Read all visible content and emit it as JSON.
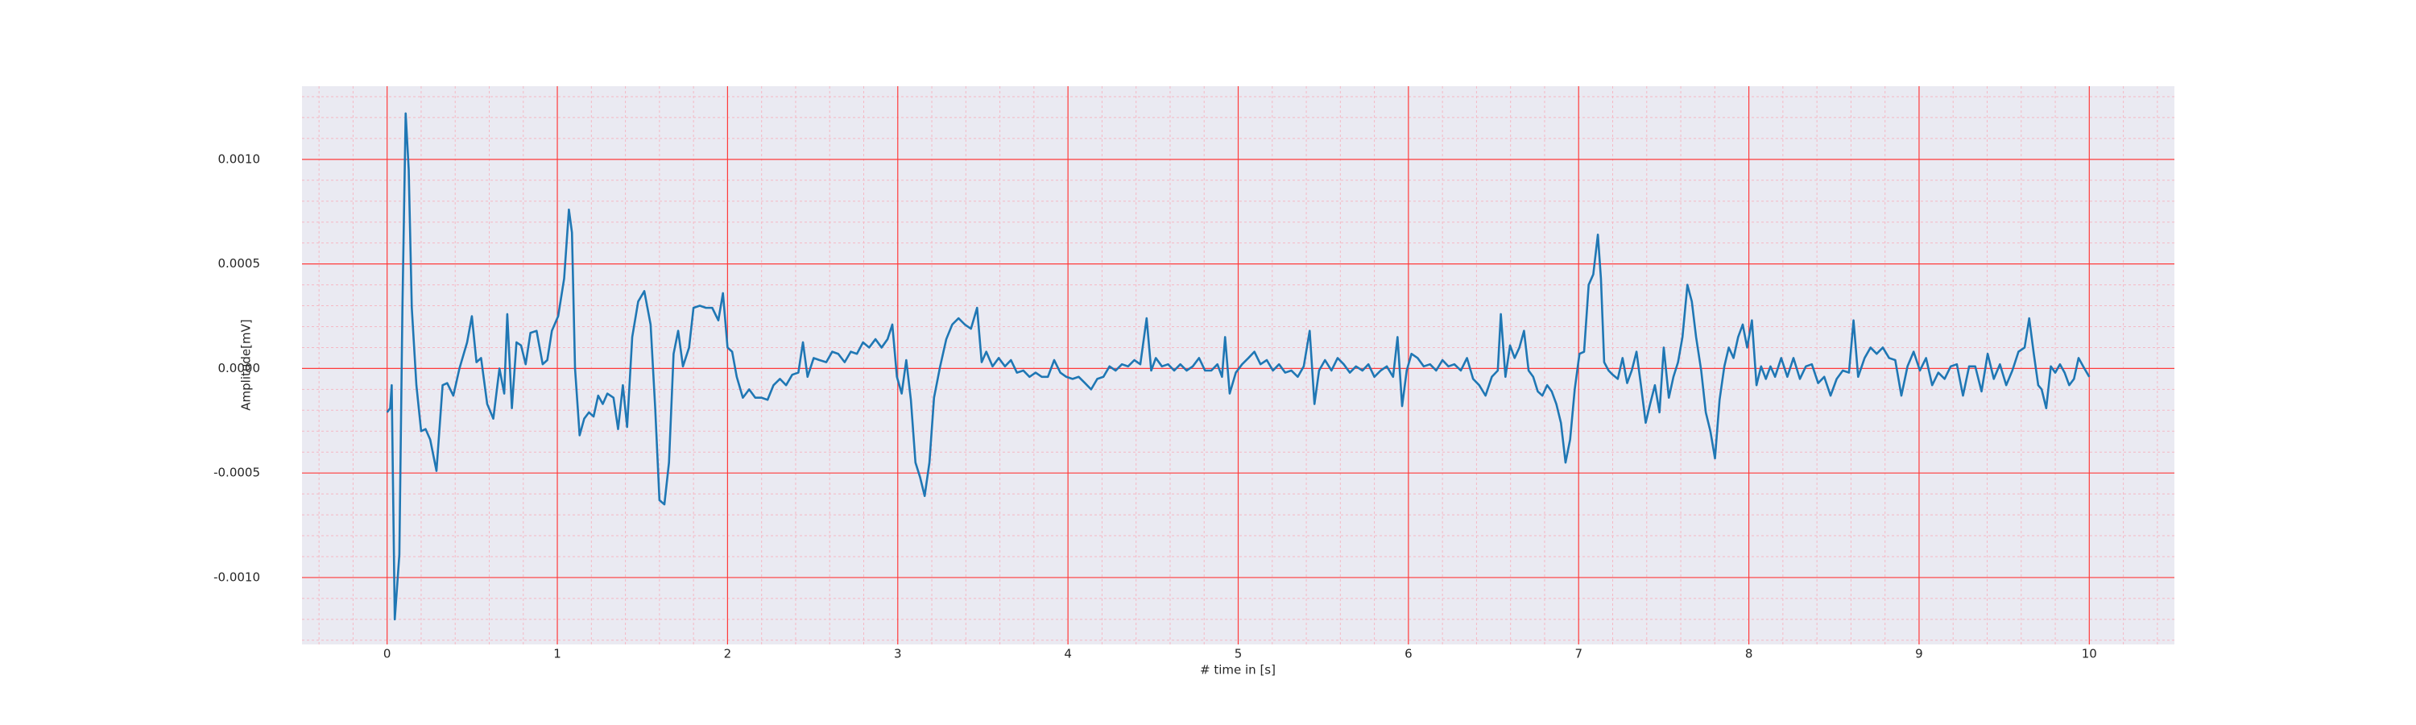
{
  "chart_data": {
    "type": "line",
    "xlabel": "# time in [s]",
    "ylabel": "Amplitude[mV]",
    "x": [
      0,
      0.018,
      0.027,
      0.045,
      0.072,
      0.09,
      0.109,
      0.127,
      0.145,
      0.172,
      0.2,
      0.226,
      0.253,
      0.29,
      0.326,
      0.353,
      0.389,
      0.425,
      0.47,
      0.498,
      0.525,
      0.552,
      0.588,
      0.624,
      0.66,
      0.688,
      0.706,
      0.733,
      0.76,
      0.787,
      0.814,
      0.842,
      0.878,
      0.914,
      0.941,
      0.968,
      1.005,
      1.04,
      1.068,
      1.086,
      1.104,
      1.131,
      1.158,
      1.186,
      1.213,
      1.24,
      1.267,
      1.294,
      1.33,
      1.357,
      1.385,
      1.41,
      1.44,
      1.475,
      1.511,
      1.548,
      1.575,
      1.6,
      1.629,
      1.656,
      1.683,
      1.71,
      1.738,
      1.774,
      1.8,
      1.837,
      1.873,
      1.91,
      1.946,
      1.973,
      2.0,
      2.027,
      2.054,
      2.09,
      2.127,
      2.163,
      2.2,
      2.235,
      2.27,
      2.308,
      2.344,
      2.38,
      2.416,
      2.443,
      2.47,
      2.506,
      2.54,
      2.58,
      2.615,
      2.65,
      2.688,
      2.724,
      2.76,
      2.796,
      2.832,
      2.869,
      2.905,
      2.94,
      2.968,
      2.995,
      3.023,
      3.05,
      3.077,
      3.104,
      3.131,
      3.158,
      3.186,
      3.213,
      3.249,
      3.285,
      3.32,
      3.357,
      3.394,
      3.43,
      3.466,
      3.493,
      3.52,
      3.557,
      3.593,
      3.63,
      3.665,
      3.7,
      3.738,
      3.774,
      3.81,
      3.846,
      3.882,
      3.919,
      3.955,
      3.99,
      4.027,
      4.063,
      4.1,
      4.136,
      4.172,
      4.208,
      4.244,
      4.28,
      4.317,
      4.353,
      4.39,
      4.425,
      4.462,
      4.489,
      4.516,
      4.552,
      4.588,
      4.624,
      4.66,
      4.697,
      4.733,
      4.77,
      4.805,
      4.842,
      4.878,
      4.905,
      4.923,
      4.95,
      4.986,
      5.023,
      5.06,
      5.095,
      5.131,
      5.168,
      5.204,
      5.24,
      5.276,
      5.312,
      5.35,
      5.385,
      5.42,
      5.448,
      5.475,
      5.51,
      5.548,
      5.584,
      5.62,
      5.656,
      5.692,
      5.73,
      5.765,
      5.8,
      5.837,
      5.873,
      5.91,
      5.936,
      5.963,
      5.99,
      6.018,
      6.054,
      6.09,
      6.127,
      6.163,
      6.2,
      6.235,
      6.27,
      6.308,
      6.344,
      6.38,
      6.416,
      6.453,
      6.49,
      6.525,
      6.543,
      6.57,
      6.597,
      6.624,
      6.652,
      6.679,
      6.706,
      6.733,
      6.76,
      6.787,
      6.815,
      6.842,
      6.869,
      6.896,
      6.923,
      6.95,
      6.977,
      7.005,
      7.032,
      7.059,
      7.086,
      7.113,
      7.131,
      7.15,
      7.176,
      7.2,
      7.23,
      7.258,
      7.285,
      7.312,
      7.34,
      7.366,
      7.394,
      7.42,
      7.448,
      7.475,
      7.5,
      7.53,
      7.557,
      7.584,
      7.61,
      7.639,
      7.665,
      7.69,
      7.72,
      7.747,
      7.774,
      7.801,
      7.828,
      7.856,
      7.882,
      7.91,
      7.937,
      7.964,
      7.99,
      8.018,
      8.045,
      8.072,
      8.1,
      8.127,
      8.154,
      8.19,
      8.226,
      8.262,
      8.3,
      8.335,
      8.37,
      8.407,
      8.443,
      8.48,
      8.516,
      8.552,
      8.588,
      8.615,
      8.642,
      8.68,
      8.715,
      8.751,
      8.787,
      8.824,
      8.86,
      8.896,
      8.932,
      8.968,
      9.005,
      9.041,
      9.077,
      9.113,
      9.15,
      9.186,
      9.222,
      9.258,
      9.294,
      9.33,
      9.367,
      9.403,
      9.439,
      9.475,
      9.512,
      9.548,
      9.584,
      9.62,
      9.647,
      9.674,
      9.7,
      9.72,
      9.747,
      9.774,
      9.8,
      9.828,
      9.855,
      9.882,
      9.91,
      9.937,
      9.964,
      10.0
    ],
    "series": [
      {
        "color": "#1f77b4",
        "values": [
          -0.00021,
          -0.00019,
          -8e-05,
          -0.0012,
          -0.00089,
          0.00029,
          0.00122,
          0.00095,
          0.00029,
          -8e-05,
          -0.0003,
          -0.00029,
          -0.00034,
          -0.00049,
          -8e-05,
          -7e-05,
          -0.00013,
          0,
          0.000125,
          0.00025,
          3e-05,
          5e-05,
          -0.00017,
          -0.00024,
          0,
          -0.00012,
          0.00026,
          -0.00019,
          0.000125,
          0.00011,
          2e-05,
          0.00017,
          0.00018,
          2e-05,
          4e-05,
          0.00018,
          0.00025,
          0.00043,
          0.00076,
          0.00065,
          0,
          -0.00032,
          -0.00024,
          -0.00021,
          -0.00023,
          -0.00013,
          -0.00017,
          -0.00012,
          -0.00014,
          -0.00029,
          -8e-05,
          -0.00028,
          0.00015,
          0.00032,
          0.00037,
          0.00021,
          -0.00019,
          -0.00063,
          -0.00065,
          -0.00045,
          7e-05,
          0.00018,
          1e-05,
          0.0001,
          0.00029,
          0.0003,
          0.00029,
          0.00029,
          0.00023,
          0.00036,
          0.0001,
          8e-05,
          -4e-05,
          -0.00014,
          -0.0001,
          -0.00014,
          -0.00014,
          -0.00015,
          -8e-05,
          -5e-05,
          -8e-05,
          -3e-05,
          -2e-05,
          0.000125,
          -4e-05,
          5e-05,
          4e-05,
          3e-05,
          8e-05,
          7e-05,
          3e-05,
          8e-05,
          7e-05,
          0.000125,
          0.0001,
          0.00014,
          0.0001,
          0.00014,
          0.00021,
          -4e-05,
          -0.00012,
          4e-05,
          -0.00015,
          -0.00045,
          -0.00052,
          -0.00061,
          -0.00045,
          -0.00014,
          1e-05,
          0.00014,
          0.00021,
          0.00024,
          0.00021,
          0.00019,
          0.00029,
          3e-05,
          8e-05,
          1e-05,
          5e-05,
          1e-05,
          4e-05,
          -2e-05,
          -1e-05,
          -4e-05,
          -2e-05,
          -4e-05,
          -4e-05,
          4e-05,
          -2e-05,
          -4e-05,
          -5e-05,
          -4e-05,
          -7e-05,
          -0.0001,
          -5e-05,
          -4e-05,
          1e-05,
          -1e-05,
          2e-05,
          1e-05,
          4e-05,
          2e-05,
          0.00024,
          -1e-05,
          5e-05,
          1e-05,
          2e-05,
          -1e-05,
          2e-05,
          -1e-05,
          1e-05,
          5e-05,
          -1e-05,
          -1e-05,
          2e-05,
          -4e-05,
          0.00015,
          -0.00012,
          -2e-05,
          2e-05,
          5e-05,
          8e-05,
          2e-05,
          4e-05,
          -1e-05,
          2e-05,
          -2e-05,
          -1e-05,
          -4e-05,
          1e-05,
          0.00018,
          -0.00017,
          -1e-05,
          4e-05,
          -1e-05,
          5e-05,
          2e-05,
          -2e-05,
          1e-05,
          -1e-05,
          2e-05,
          -4e-05,
          -1e-05,
          1e-05,
          -4e-05,
          0.00015,
          -0.00018,
          -1e-05,
          7e-05,
          5e-05,
          1e-05,
          2e-05,
          -1e-05,
          4e-05,
          1e-05,
          2e-05,
          -1e-05,
          5e-05,
          -5e-05,
          -8e-05,
          -0.00013,
          -4e-05,
          -1e-05,
          0.00026,
          -4e-05,
          0.00011,
          5e-05,
          0.0001,
          0.00018,
          -1e-05,
          -4e-05,
          -0.00011,
          -0.00013,
          -8e-05,
          -0.00011,
          -0.00017,
          -0.00026,
          -0.00045,
          -0.00034,
          -0.0001,
          7e-05,
          8e-05,
          0.0004,
          0.00045,
          0.00064,
          0.00043,
          3e-05,
          -1e-05,
          -3e-05,
          -5e-05,
          5e-05,
          -7e-05,
          -1e-05,
          8e-05,
          -8e-05,
          -0.00026,
          -0.00017,
          -8e-05,
          -0.00021,
          0.0001,
          -0.00014,
          -4e-05,
          3e-05,
          0.00015,
          0.0004,
          0.00032,
          0.00015,
          -1e-05,
          -0.00021,
          -0.0003,
          -0.00043,
          -0.00015,
          1e-05,
          0.0001,
          5e-05,
          0.00015,
          0.00021,
          0.0001,
          0.00023,
          -8e-05,
          1e-05,
          -5e-05,
          1e-05,
          -4e-05,
          5e-05,
          -4e-05,
          5e-05,
          -5e-05,
          1e-05,
          2e-05,
          -7e-05,
          -4e-05,
          -0.00013,
          -5e-05,
          -1e-05,
          -2e-05,
          0.00023,
          -4e-05,
          5e-05,
          0.0001,
          7e-05,
          0.0001,
          5e-05,
          4e-05,
          -0.00013,
          1e-05,
          8e-05,
          -1e-05,
          5e-05,
          -8e-05,
          -2e-05,
          -5e-05,
          1e-05,
          2e-05,
          -0.00013,
          1e-05,
          1e-05,
          -0.00011,
          7e-05,
          -5e-05,
          2e-05,
          -8e-05,
          -1e-05,
          8e-05,
          0.0001,
          0.00024,
          7e-05,
          -8e-05,
          -0.0001,
          -0.00019,
          1e-05,
          -2e-05,
          2e-05,
          -2e-05,
          -8e-05,
          -5e-05,
          5e-05,
          1e-05,
          -4e-05
        ]
      }
    ],
    "xlim": [
      -0.5,
      10.5
    ],
    "xticks": [
      0,
      1,
      2,
      3,
      4,
      5,
      6,
      7,
      8,
      9,
      10
    ],
    "ylim": [
      -0.00132,
      0.00135
    ],
    "yticks": [
      {
        "value": -0.001,
        "label": "-0.0010"
      },
      {
        "value": -0.0005,
        "label": "-0.0005"
      },
      {
        "value": 0,
        "label": "0.0000"
      },
      {
        "value": 0.0005,
        "label": "0.0005"
      },
      {
        "value": 0.001,
        "label": "0.0010"
      }
    ],
    "grid": true,
    "grid_color": "#ff3b3b",
    "minor_grid": true,
    "minor_divisions": 5,
    "minor_grid_color": "#f5b8c4",
    "background": "#eaeaf2"
  }
}
